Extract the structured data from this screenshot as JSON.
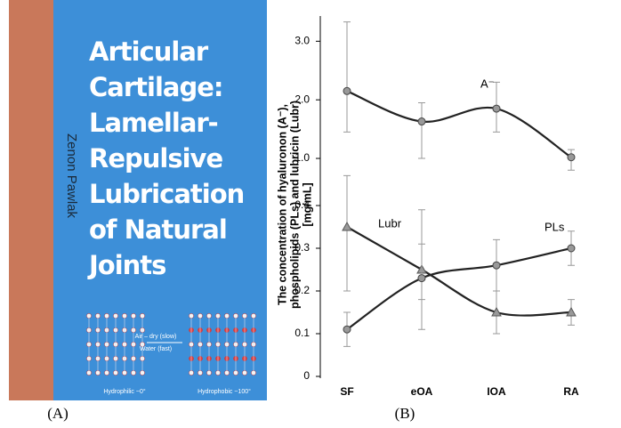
{
  "cover": {
    "title_lines": [
      "Articular",
      "Cartilage:",
      "Lamellar-",
      "Repulsive",
      "Lubrication",
      "of Natural",
      "Joints"
    ],
    "author": "Zenon Pawlak",
    "diagram": {
      "arrow_top": "Air – dry (slow)",
      "arrow_bottom": "Water (fast)",
      "left_caption": "Hydrophilic ~0°",
      "right_caption": "Hydrophobic ~100°"
    }
  },
  "panel_labels": [
    "(A)",
    "(B)"
  ],
  "chart_data": [
    {
      "type": "line",
      "ylim": [
        0.75,
        3.4
      ],
      "yticks": [
        {
          "value": 1,
          "label": "1.0"
        },
        {
          "value": 2,
          "label": "2.0"
        },
        {
          "value": 3,
          "label": "3.0"
        }
      ],
      "series": [
        {
          "name": "A⁻",
          "color": "#222222",
          "marker": "circle",
          "values": [
            2.15,
            1.63,
            1.85,
            1.02
          ],
          "error_low": [
            1.45,
            1.0,
            1.45,
            0.8
          ],
          "error_high": [
            3.33,
            1.95,
            2.3,
            1.15
          ]
        }
      ]
    },
    {
      "type": "line",
      "ylim": [
        0,
        0.45
      ],
      "yticks": [
        0,
        0.1,
        0.2,
        0.3,
        0.4
      ],
      "categories": [
        "SF",
        "eOA",
        "IOA",
        "RA"
      ],
      "ylabel_lines": [
        "The concentration of hyaluronon (A⁻),",
        "phospholipids (PLs) and lubricin (Lubr)",
        "[mg/mL]"
      ],
      "series": [
        {
          "name": "Lubr",
          "color": "#222222",
          "marker": "triangle",
          "values": [
            0.35,
            0.25,
            0.15,
            0.15
          ],
          "error_low": [
            0.2,
            0.11,
            0.1,
            0.12
          ],
          "error_high": [
            0.47,
            0.39,
            0.2,
            0.18
          ]
        },
        {
          "name": "PLs",
          "color": "#222222",
          "marker": "circle",
          "values": [
            0.11,
            0.23,
            0.26,
            0.3
          ],
          "error_low": [
            0.07,
            0.18,
            0.2,
            0.26
          ],
          "error_high": [
            0.15,
            0.31,
            0.32,
            0.34
          ]
        }
      ]
    }
  ]
}
